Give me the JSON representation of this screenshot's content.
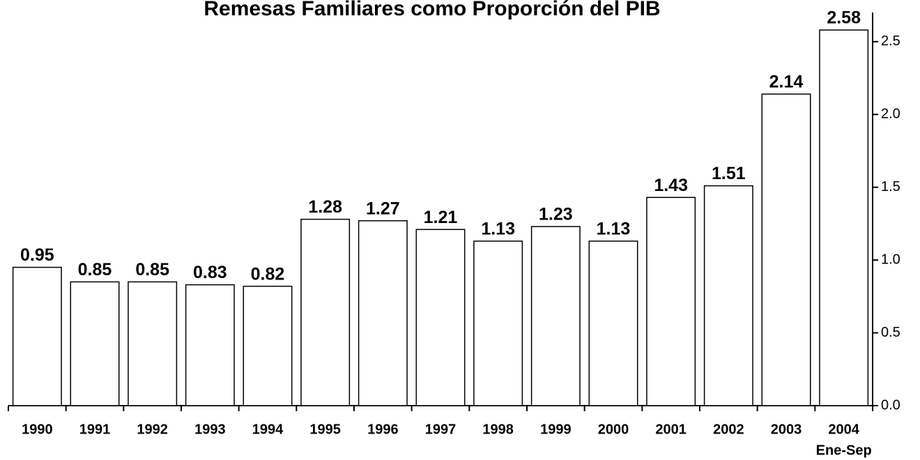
{
  "chart_data": {
    "type": "bar",
    "title": "Remesas Familiares como Proporción del PIB",
    "categories": [
      "1990",
      "1991",
      "1992",
      "1993",
      "1994",
      "1995",
      "1996",
      "1997",
      "1998",
      "1999",
      "2000",
      "2001",
      "2002",
      "2003",
      "2004"
    ],
    "category_note": "Ene-Sep",
    "values": [
      0.95,
      0.85,
      0.85,
      0.83,
      0.82,
      1.28,
      1.27,
      1.21,
      1.13,
      1.23,
      1.13,
      1.43,
      1.51,
      2.14,
      2.58
    ],
    "color": "#ffffff",
    "ylim": [
      0,
      2.7
    ],
    "yticks": [
      {
        "value": 0,
        "label": "0.0"
      },
      0.5,
      {
        "value": 1,
        "label": "1.0"
      },
      1.5,
      {
        "value": 2,
        "label": "2.0"
      },
      2.5
    ],
    "axis_side": "right",
    "grid": false
  }
}
